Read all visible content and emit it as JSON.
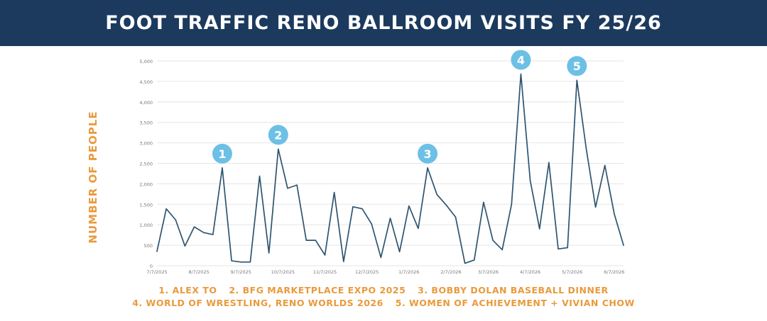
{
  "header": {
    "title": "FOOT TRAFFIC RENO BALLROOM VISITS FY 25/26"
  },
  "colors": {
    "banner": "#1c3a5e",
    "line": "#2e5470",
    "marker": "#6cc0e5",
    "accent": "#e99a3c",
    "grid": "#e6e6e6"
  },
  "captions": {
    "line1": [
      "1. ALEX TO",
      "2. BFG MARKETPLACE EXPO 2025",
      "3. BOBBY DOLAN BASEBALL DINNER"
    ],
    "line2": [
      "4. WORLD OF WRESTLING, RENO WORLDS 2026",
      "5. WOMEN OF ACHIEVEMENT + VIVIAN CHOW"
    ]
  },
  "chart_data": {
    "type": "line",
    "title": "FOOT TRAFFIC RENO BALLROOM VISITS FY 25/26",
    "ylabel": "NUMBER OF PEOPLE",
    "xlabel": "",
    "ylim": [
      0,
      5000
    ],
    "yticks": [
      "0",
      "500",
      "1,000",
      "1,500",
      "2,000",
      "2,500",
      "3,000",
      "3,500",
      "4,000",
      "4,500",
      "5,000"
    ],
    "xticks": [
      {
        "label": "7/7/2025",
        "index": 0
      },
      {
        "label": "8/7/2025",
        "index": 4.5
      },
      {
        "label": "9/7/2025",
        "index": 9
      },
      {
        "label": "10/7/2025",
        "index": 13.5
      },
      {
        "label": "11/7/2025",
        "index": 18
      },
      {
        "label": "12/7/2025",
        "index": 22.5
      },
      {
        "label": "1/7/2026",
        "index": 27
      },
      {
        "label": "2/7/2026",
        "index": 31.5
      },
      {
        "label": "3/7/2026",
        "index": 35.5
      },
      {
        "label": "4/7/2026",
        "index": 40
      },
      {
        "label": "5/7/2026",
        "index": 44.5
      },
      {
        "label": "6/7/2026",
        "index": 49
      }
    ],
    "grid": true,
    "series": [
      {
        "values": [
          350,
          1390,
          1120,
          480,
          950,
          810,
          760,
          2390,
          120,
          90,
          90,
          2190,
          310,
          2850,
          1890,
          1970,
          620,
          620,
          260,
          1790,
          100,
          1440,
          1390,
          1020,
          200,
          1160,
          340,
          1460,
          910,
          2390,
          1740,
          1480,
          1190,
          60,
          140,
          1550,
          620,
          390,
          1500,
          4680,
          2080,
          900,
          2520,
          410,
          440,
          4530,
          2860,
          1430,
          2450,
          1270,
          500
        ]
      }
    ],
    "annotations": [
      {
        "label": "1",
        "index": 7
      },
      {
        "label": "2",
        "index": 13
      },
      {
        "label": "3",
        "index": 29
      },
      {
        "label": "4",
        "index": 39
      },
      {
        "label": "5",
        "index": 45
      }
    ]
  }
}
